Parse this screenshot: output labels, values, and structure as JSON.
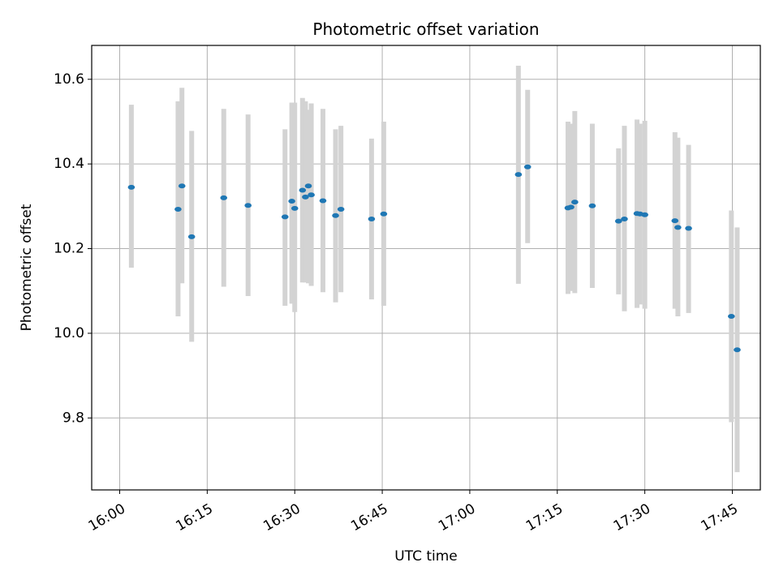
{
  "chart_data": {
    "type": "scatter",
    "title": "Photometric offset variation",
    "xlabel": "UTC time",
    "ylabel": "Photometric offset",
    "xlim": [
      "15:55:12",
      "17:49:48"
    ],
    "ylim": [
      9.63,
      10.68
    ],
    "x_ticks": [
      "16:00",
      "16:15",
      "16:30",
      "16:45",
      "17:00",
      "17:15",
      "17:30",
      "17:45"
    ],
    "y_ticks": [
      "9.8",
      "10.0",
      "10.2",
      "10.4",
      "10.6"
    ],
    "grid": true,
    "colors": {
      "points": "#1f77b4",
      "errorbars": "#d3d3d3",
      "grid": "#b0b0b0"
    },
    "series": [
      {
        "points": [
          {
            "x": "16:02",
            "y": 10.345,
            "ylo": 10.155,
            "yhi": 10.54
          },
          {
            "x": "16:10",
            "y": 10.293,
            "ylo": 10.04,
            "yhi": 10.548
          },
          {
            "x": "16:10:40",
            "y": 10.348,
            "ylo": 10.118,
            "yhi": 10.58
          },
          {
            "x": "16:12:20",
            "y": 10.228,
            "ylo": 9.98,
            "yhi": 10.478
          },
          {
            "x": "16:17:50",
            "y": 10.32,
            "ylo": 10.11,
            "yhi": 10.53
          },
          {
            "x": "16:22",
            "y": 10.302,
            "ylo": 10.088,
            "yhi": 10.517
          },
          {
            "x": "16:28:20",
            "y": 10.275,
            "ylo": 10.065,
            "yhi": 10.482
          },
          {
            "x": "16:29:30",
            "y": 10.312,
            "ylo": 10.07,
            "yhi": 10.545
          },
          {
            "x": "16:30",
            "y": 10.295,
            "ylo": 10.05,
            "yhi": 10.545
          },
          {
            "x": "16:31:20",
            "y": 10.338,
            "ylo": 10.12,
            "yhi": 10.556
          },
          {
            "x": "16:31:50",
            "y": 10.322,
            "ylo": 10.12,
            "yhi": 10.548
          },
          {
            "x": "16:32:20",
            "y": 10.348,
            "ylo": 10.118,
            "yhi": 10.528
          },
          {
            "x": "16:32:50",
            "y": 10.327,
            "ylo": 10.112,
            "yhi": 10.543
          },
          {
            "x": "16:34:50",
            "y": 10.313,
            "ylo": 10.097,
            "yhi": 10.53
          },
          {
            "x": "16:37",
            "y": 10.278,
            "ylo": 10.073,
            "yhi": 10.482
          },
          {
            "x": "16:37:55",
            "y": 10.293,
            "ylo": 10.097,
            "yhi": 10.49
          },
          {
            "x": "16:43:10",
            "y": 10.27,
            "ylo": 10.08,
            "yhi": 10.46
          },
          {
            "x": "16:45:15",
            "y": 10.282,
            "ylo": 10.065,
            "yhi": 10.5
          },
          {
            "x": "17:08:20",
            "y": 10.375,
            "ylo": 10.117,
            "yhi": 10.632
          },
          {
            "x": "17:09:55",
            "y": 10.393,
            "ylo": 10.213,
            "yhi": 10.575
          },
          {
            "x": "17:16:50",
            "y": 10.296,
            "ylo": 10.093,
            "yhi": 10.5
          },
          {
            "x": "17:17:20",
            "y": 10.298,
            "ylo": 10.1,
            "yhi": 10.495
          },
          {
            "x": "17:18",
            "y": 10.31,
            "ylo": 10.095,
            "yhi": 10.525
          },
          {
            "x": "17:21",
            "y": 10.301,
            "ylo": 10.107,
            "yhi": 10.495
          },
          {
            "x": "17:25:30",
            "y": 10.265,
            "ylo": 10.092,
            "yhi": 10.437
          },
          {
            "x": "17:26:30",
            "y": 10.27,
            "ylo": 10.052,
            "yhi": 10.49
          },
          {
            "x": "17:28:40",
            "y": 10.283,
            "ylo": 10.06,
            "yhi": 10.505
          },
          {
            "x": "17:29:10",
            "y": 10.282,
            "ylo": 10.068,
            "yhi": 10.495
          },
          {
            "x": "17:30",
            "y": 10.28,
            "ylo": 10.058,
            "yhi": 10.502
          },
          {
            "x": "17:35:10",
            "y": 10.266,
            "ylo": 10.058,
            "yhi": 10.475
          },
          {
            "x": "17:35:40",
            "y": 10.25,
            "ylo": 10.04,
            "yhi": 10.462
          },
          {
            "x": "17:37:30",
            "y": 10.248,
            "ylo": 10.048,
            "yhi": 10.445
          },
          {
            "x": "17:44:50",
            "y": 10.04,
            "ylo": 9.79,
            "yhi": 10.29
          },
          {
            "x": "17:45:50",
            "y": 9.961,
            "ylo": 9.672,
            "yhi": 10.25
          }
        ]
      }
    ]
  }
}
